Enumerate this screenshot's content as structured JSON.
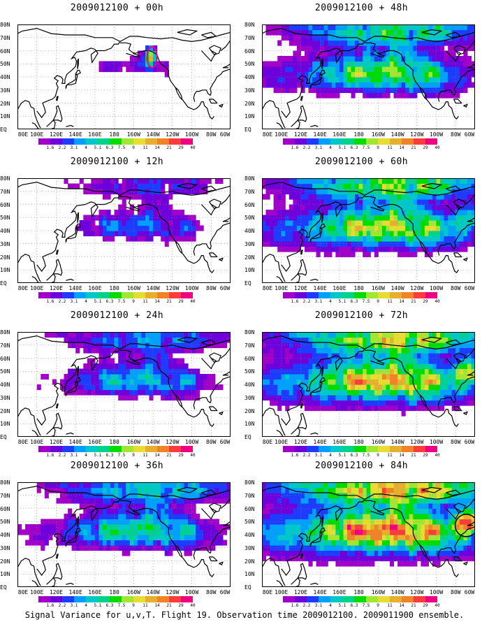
{
  "panels": [
    {
      "title": "2009012100 + 00h",
      "level": 0
    },
    {
      "title": "2009012100 + 48h",
      "level": 4
    },
    {
      "title": "2009012100 + 12h",
      "level": 1
    },
    {
      "title": "2009012100 + 60h",
      "level": 5
    },
    {
      "title": "2009012100 + 24h",
      "level": 2
    },
    {
      "title": "2009012100 + 72h",
      "level": 6
    },
    {
      "title": "2009012100 + 36h",
      "level": 3
    },
    {
      "title": "2009012100 + 84h",
      "level": 7
    }
  ],
  "latitude_labels": [
    "80N",
    "70N",
    "60N",
    "50N",
    "40N",
    "30N",
    "20N",
    "10N",
    "EQ"
  ],
  "longitude_labels": [
    "80E",
    "100E",
    "120E",
    "140E",
    "160E",
    "180",
    "160W",
    "140W",
    "120W",
    "100W",
    "80W",
    "60W"
  ],
  "colorbar": {
    "labels": [
      "1.6",
      "2.2",
      "3.1",
      "4",
      "5.1",
      "6.3",
      "7.5",
      "9",
      "11",
      "14",
      "21",
      "29",
      "40"
    ],
    "colors": [
      "#a000c8",
      "#6e00dc",
      "#1e3cff",
      "#00a0ff",
      "#00c8c8",
      "#00d28c",
      "#00dc00",
      "#a0e632",
      "#e6dc32",
      "#e6af2d",
      "#f08228",
      "#fa3c3c",
      "#f00082"
    ]
  },
  "caption": "Signal Variance for u,v,T. Flight 19. Observation time 2009012100. 2009011900 ensemble."
}
